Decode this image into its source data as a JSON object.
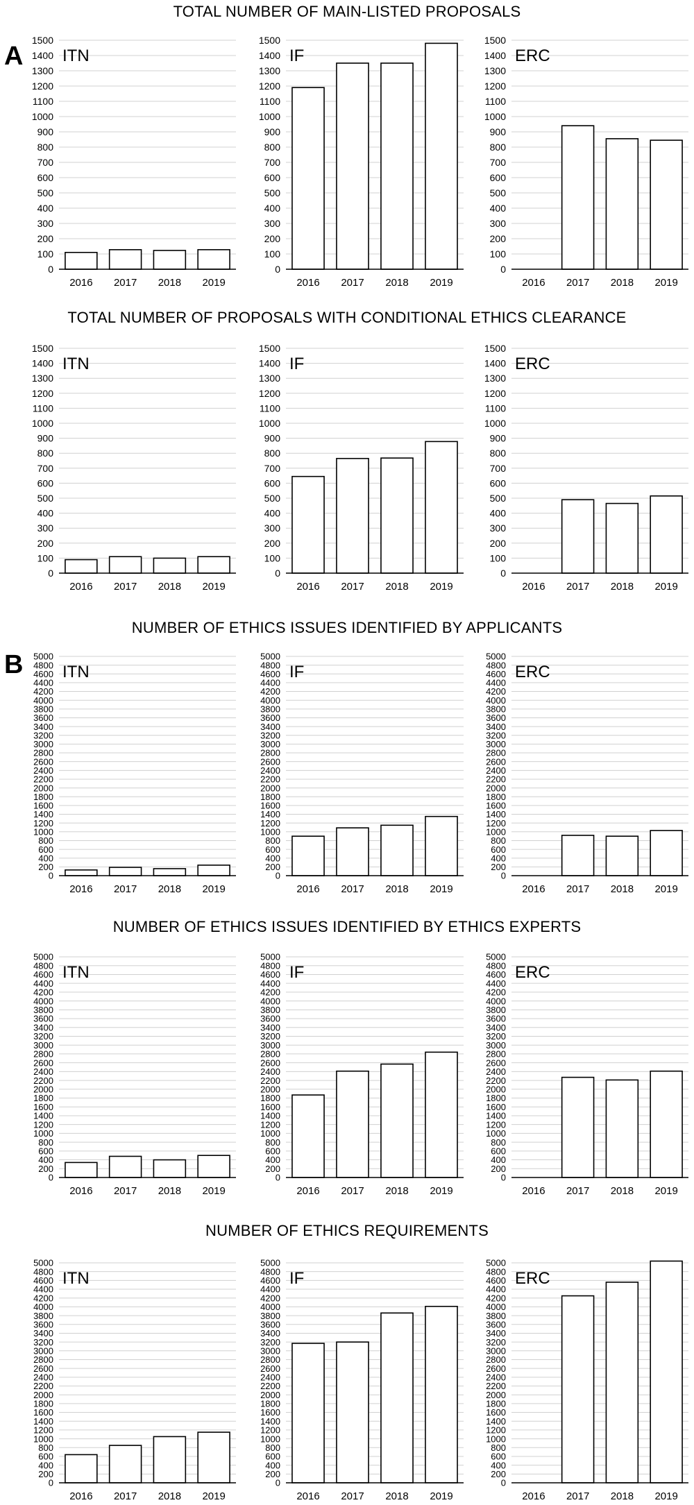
{
  "panels": [
    {
      "letter": "A",
      "letter_row": 0
    },
    {
      "letter": "B",
      "letter_row": 2
    }
  ],
  "rows": [
    {
      "title": "TOTAL NUMBER OF MAIN-LISTED PROPOSALS"
    },
    {
      "title": "TOTAL NUMBER OF PROPOSALS WITH CONDITIONAL ETHICS CLEARANCE"
    },
    {
      "title": "NUMBER OF ETHICS ISSUES IDENTIFIED BY APPLICANTS"
    },
    {
      "title": "NUMBER OF ETHICS ISSUES IDENTIFIED BY ETHICS EXPERTS"
    },
    {
      "title": "NUMBER OF ETHICS REQUIREMENTS"
    }
  ],
  "colors": {
    "bar_fill": "#ffffff",
    "bar_stroke": "#000000",
    "grid": "#d0d0d0",
    "axis": "#000000"
  },
  "chart_data": [
    {
      "type": "bar",
      "title": "ITN",
      "categories": [
        "2016",
        "2017",
        "2018",
        "2019"
      ],
      "values": [
        110,
        128,
        123,
        128
      ],
      "ylim": [
        0,
        1500
      ],
      "yticks_step": 100,
      "grid": true
    },
    {
      "type": "bar",
      "title": "IF",
      "categories": [
        "2016",
        "2017",
        "2018",
        "2019"
      ],
      "values": [
        1190,
        1350,
        1350,
        1480
      ],
      "ylim": [
        0,
        1500
      ],
      "yticks_step": 100,
      "grid": true
    },
    {
      "type": "bar",
      "title": "ERC",
      "categories": [
        "2016",
        "2017",
        "2018",
        "2019"
      ],
      "values": [
        0,
        940,
        855,
        845
      ],
      "ylim": [
        0,
        1500
      ],
      "yticks_step": 100,
      "grid": true
    },
    {
      "type": "bar",
      "title": "ITN",
      "categories": [
        "2016",
        "2017",
        "2018",
        "2019"
      ],
      "values": [
        90,
        110,
        100,
        110
      ],
      "ylim": [
        0,
        1500
      ],
      "yticks_step": 100,
      "grid": true
    },
    {
      "type": "bar",
      "title": "IF",
      "categories": [
        "2016",
        "2017",
        "2018",
        "2019"
      ],
      "values": [
        645,
        765,
        768,
        878
      ],
      "ylim": [
        0,
        1500
      ],
      "yticks_step": 100,
      "grid": true
    },
    {
      "type": "bar",
      "title": "ERC",
      "categories": [
        "2016",
        "2017",
        "2018",
        "2019"
      ],
      "values": [
        0,
        490,
        465,
        515
      ],
      "ylim": [
        0,
        1500
      ],
      "yticks_step": 100,
      "grid": true
    },
    {
      "type": "bar",
      "title": "ITN",
      "categories": [
        "2016",
        "2017",
        "2018",
        "2019"
      ],
      "values": [
        130,
        190,
        160,
        240
      ],
      "ylim": [
        0,
        5000
      ],
      "yticks_step": 200,
      "grid": true
    },
    {
      "type": "bar",
      "title": "IF",
      "categories": [
        "2016",
        "2017",
        "2018",
        "2019"
      ],
      "values": [
        900,
        1090,
        1150,
        1350
      ],
      "ylim": [
        0,
        5000
      ],
      "yticks_step": 200,
      "grid": true
    },
    {
      "type": "bar",
      "title": "ERC",
      "categories": [
        "2016",
        "2017",
        "2018",
        "2019"
      ],
      "values": [
        0,
        920,
        900,
        1030
      ],
      "ylim": [
        0,
        5000
      ],
      "yticks_step": 200,
      "grid": true
    },
    {
      "type": "bar",
      "title": "ITN",
      "categories": [
        "2016",
        "2017",
        "2018",
        "2019"
      ],
      "values": [
        340,
        480,
        400,
        500
      ],
      "ylim": [
        0,
        5000
      ],
      "yticks_step": 200,
      "grid": true
    },
    {
      "type": "bar",
      "title": "IF",
      "categories": [
        "2016",
        "2017",
        "2018",
        "2019"
      ],
      "values": [
        1870,
        2410,
        2570,
        2840
      ],
      "ylim": [
        0,
        5000
      ],
      "yticks_step": 200,
      "grid": true
    },
    {
      "type": "bar",
      "title": "ERC",
      "categories": [
        "2016",
        "2017",
        "2018",
        "2019"
      ],
      "values": [
        0,
        2270,
        2210,
        2410
      ],
      "ylim": [
        0,
        5000
      ],
      "yticks_step": 200,
      "grid": true
    },
    {
      "type": "bar",
      "title": "ITN",
      "categories": [
        "2016",
        "2017",
        "2018",
        "2019"
      ],
      "values": [
        640,
        850,
        1050,
        1150
      ],
      "ylim": [
        0,
        5000
      ],
      "yticks_step": 200,
      "grid": true
    },
    {
      "type": "bar",
      "title": "IF",
      "categories": [
        "2016",
        "2017",
        "2018",
        "2019"
      ],
      "values": [
        3170,
        3200,
        3860,
        4010
      ],
      "ylim": [
        0,
        5000
      ],
      "yticks_step": 200,
      "grid": true
    },
    {
      "type": "bar",
      "title": "ERC",
      "categories": [
        "2016",
        "2017",
        "2018",
        "2019"
      ],
      "values": [
        0,
        4250,
        4560,
        5040
      ],
      "ylim": [
        0,
        5000
      ],
      "yticks_step": 200,
      "grid": true
    }
  ]
}
